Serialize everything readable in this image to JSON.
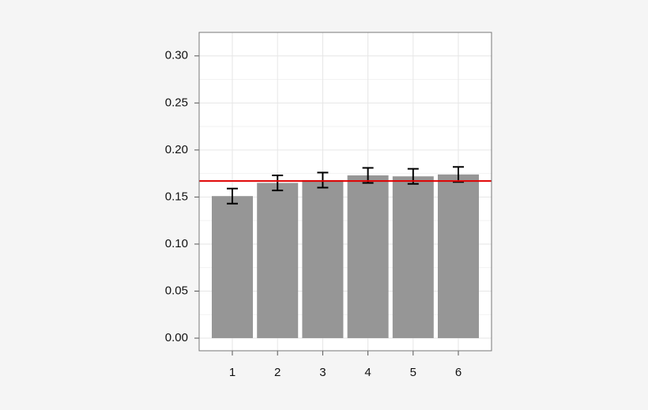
{
  "chart_data": {
    "type": "bar",
    "categories": [
      "1",
      "2",
      "3",
      "4",
      "5",
      "6"
    ],
    "values": [
      0.151,
      0.165,
      0.168,
      0.173,
      0.172,
      0.174
    ],
    "errors": [
      0.008,
      0.008,
      0.008,
      0.008,
      0.008,
      0.008
    ],
    "color": "#969696",
    "error_color": "#000000",
    "hline": {
      "value": 0.167,
      "color": "#e00000"
    },
    "ylim": [
      -0.0134,
      0.325
    ],
    "yticks": [
      {
        "value": 0,
        "label": "0.00"
      },
      {
        "value": 0.05,
        "label": "0.05"
      },
      {
        "value": 0.1,
        "label": "0.10"
      },
      {
        "value": 0.15,
        "label": "0.15"
      },
      {
        "value": 0.2,
        "label": "0.20"
      },
      {
        "value": 0.25,
        "label": "0.25"
      },
      {
        "value": 0.3,
        "label": "0.30"
      }
    ],
    "grid": true
  }
}
